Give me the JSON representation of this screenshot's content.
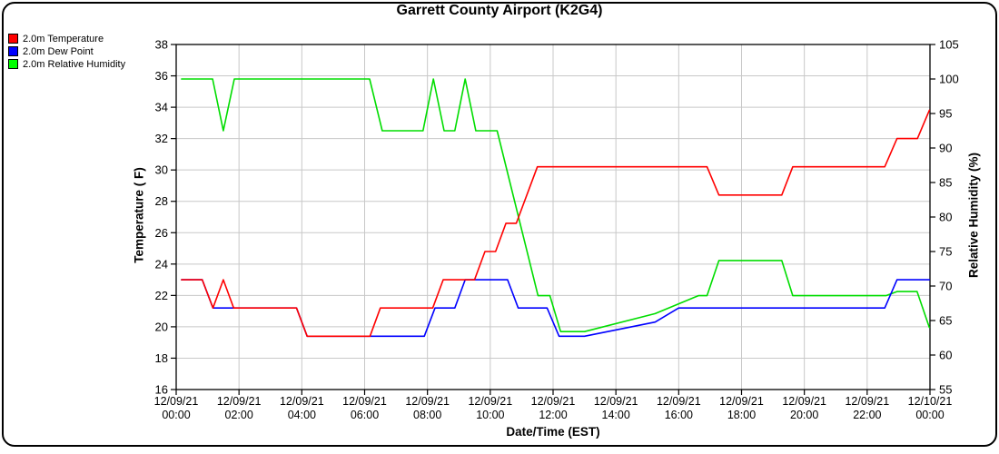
{
  "window": {
    "title": "Garrett County Airport (K2G4)"
  },
  "chart_data": {
    "type": "line",
    "title": "Garrett County Airport (K2G4)",
    "xlabel": "Date/Time (EST)",
    "ylabel_left": "Temperature ( F)",
    "ylabel_right": "Relative Humidity (%)",
    "x_unit": "hours since 12/09/21 00:00 EST",
    "xlim": [
      0,
      24
    ],
    "ylim_left": [
      16,
      38
    ],
    "ylim_right": [
      55,
      105
    ],
    "grid": true,
    "legend_position": "top-left-outside",
    "x_ticks": [
      {
        "date": "12/09/21",
        "time": "00:00"
      },
      {
        "date": "12/09/21",
        "time": "02:00"
      },
      {
        "date": "12/09/21",
        "time": "04:00"
      },
      {
        "date": "12/09/21",
        "time": "06:00"
      },
      {
        "date": "12/09/21",
        "time": "08:00"
      },
      {
        "date": "12/09/21",
        "time": "10:00"
      },
      {
        "date": "12/09/21",
        "time": "12:00"
      },
      {
        "date": "12/09/21",
        "time": "14:00"
      },
      {
        "date": "12/09/21",
        "time": "16:00"
      },
      {
        "date": "12/09/21",
        "time": "18:00"
      },
      {
        "date": "12/09/21",
        "time": "20:00"
      },
      {
        "date": "12/09/21",
        "time": "22:00"
      },
      {
        "date": "12/10/21",
        "time": "00:00"
      }
    ],
    "y_ticks_left": [
      16,
      18,
      20,
      22,
      24,
      26,
      28,
      30,
      32,
      34,
      36,
      38
    ],
    "y_ticks_right": [
      55,
      60,
      65,
      70,
      75,
      80,
      85,
      90,
      95,
      100,
      105
    ],
    "colors": {
      "grid": "#c8c8c8",
      "axis": "#000000"
    },
    "series": [
      {
        "name": "2.0m Temperature",
        "axis": "left",
        "color": "#ff0000",
        "legend_color": "#ff0000",
        "points": [
          [
            0.17,
            23
          ],
          [
            0.83,
            23
          ],
          [
            1.17,
            21.2
          ],
          [
            1.5,
            23
          ],
          [
            1.83,
            21.2
          ],
          [
            3.83,
            21.2
          ],
          [
            4.17,
            19.4
          ],
          [
            6.17,
            19.4
          ],
          [
            6.5,
            21.2
          ],
          [
            8.17,
            21.2
          ],
          [
            8.5,
            23
          ],
          [
            9.5,
            23
          ],
          [
            9.83,
            24.8
          ],
          [
            10.17,
            24.8
          ],
          [
            10.5,
            26.6
          ],
          [
            10.83,
            26.6
          ],
          [
            11.5,
            30.2
          ],
          [
            16.9,
            30.2
          ],
          [
            17.28,
            28.4
          ],
          [
            19.28,
            28.4
          ],
          [
            19.63,
            30.2
          ],
          [
            22.56,
            30.2
          ],
          [
            22.95,
            32
          ],
          [
            23.6,
            32
          ],
          [
            23.98,
            33.8
          ]
        ]
      },
      {
        "name": "2.0m Dew Point",
        "axis": "left",
        "color": "#0000ff",
        "legend_color": "#0000ff",
        "points": [
          [
            0.17,
            23
          ],
          [
            0.83,
            23
          ],
          [
            1.17,
            21.2
          ],
          [
            3.83,
            21.2
          ],
          [
            4.17,
            19.4
          ],
          [
            7.9,
            19.4
          ],
          [
            8.24,
            21.2
          ],
          [
            8.87,
            21.2
          ],
          [
            9.2,
            23
          ],
          [
            10.55,
            23
          ],
          [
            10.89,
            21.2
          ],
          [
            11.81,
            21.2
          ],
          [
            12.19,
            19.4
          ],
          [
            13.0,
            19.4
          ],
          [
            15.25,
            20.3
          ],
          [
            16.0,
            21.2
          ],
          [
            22.56,
            21.2
          ],
          [
            22.95,
            23
          ],
          [
            23.98,
            23
          ]
        ]
      },
      {
        "name": "2.0m Relative Humidity",
        "axis": "right",
        "color": "#00dd00",
        "legend_color": "#00ff00",
        "points": [
          [
            0.17,
            100
          ],
          [
            1.16,
            100
          ],
          [
            1.5,
            92.5
          ],
          [
            1.85,
            100
          ],
          [
            6.16,
            100
          ],
          [
            6.56,
            92.5
          ],
          [
            7.86,
            92.5
          ],
          [
            8.19,
            100
          ],
          [
            8.53,
            92.5
          ],
          [
            8.87,
            92.5
          ],
          [
            9.2,
            100
          ],
          [
            9.54,
            92.5
          ],
          [
            10.22,
            92.5
          ],
          [
            11.52,
            68.6
          ],
          [
            11.9,
            68.6
          ],
          [
            12.24,
            63.4
          ],
          [
            13.0,
            63.4
          ],
          [
            15.25,
            66.0
          ],
          [
            16.63,
            68.6
          ],
          [
            16.9,
            68.6
          ],
          [
            17.28,
            73.7
          ],
          [
            19.28,
            73.7
          ],
          [
            19.63,
            68.6
          ],
          [
            22.6,
            68.6
          ],
          [
            22.95,
            69.2
          ],
          [
            23.59,
            69.2
          ],
          [
            23.98,
            64
          ]
        ]
      }
    ]
  }
}
